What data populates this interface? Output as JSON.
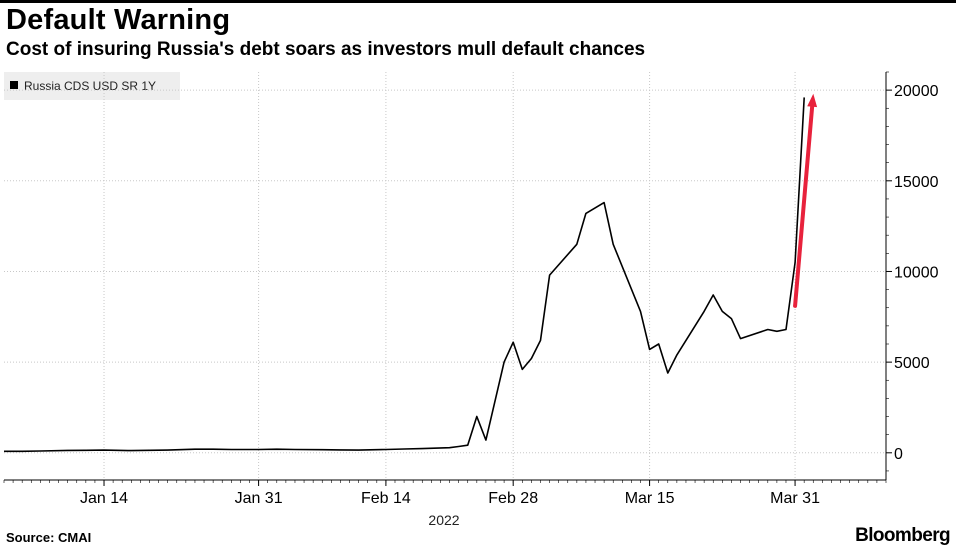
{
  "header": {
    "title": "Default Warning",
    "subtitle": "Cost of insuring Russia's debt soars as investors mull default chances"
  },
  "footer": {
    "source": "Source: CMAI",
    "brand": "Bloomberg"
  },
  "chart_data": {
    "type": "line",
    "title": "Default Warning",
    "subtitle": "Cost of insuring Russia's debt soars as investors mull default chances",
    "xlabel": "2022",
    "ylabel": "",
    "legend_position": "top-left",
    "grid": true,
    "x_tick_labels": [
      {
        "date": "2022-01-14",
        "label": "Jan 14"
      },
      {
        "date": "2022-01-31",
        "label": "Jan 31"
      },
      {
        "date": "2022-02-14",
        "label": "Feb 14"
      },
      {
        "date": "2022-02-28",
        "label": "Feb 28"
      },
      {
        "date": "2022-03-15",
        "label": "Mar 15"
      },
      {
        "date": "2022-03-31",
        "label": "Mar 31"
      }
    ],
    "y_ticks": [
      0,
      5000,
      10000,
      15000,
      20000
    ],
    "y_tick_labels": [
      "0",
      "5000",
      "10000",
      "15000",
      "20000"
    ],
    "xlim": [
      "2022-01-03",
      "2022-04-10"
    ],
    "ylim": [
      -1500,
      21000
    ],
    "series": [
      {
        "name": "Russia CDS USD SR 1Y",
        "color": "#000000",
        "points": [
          [
            "2022-01-03",
            80
          ],
          [
            "2022-01-05",
            80
          ],
          [
            "2022-01-07",
            100
          ],
          [
            "2022-01-10",
            130
          ],
          [
            "2022-01-12",
            140
          ],
          [
            "2022-01-14",
            150
          ],
          [
            "2022-01-17",
            120
          ],
          [
            "2022-01-19",
            140
          ],
          [
            "2022-01-21",
            150
          ],
          [
            "2022-01-24",
            200
          ],
          [
            "2022-01-26",
            200
          ],
          [
            "2022-01-28",
            180
          ],
          [
            "2022-01-31",
            180
          ],
          [
            "2022-02-02",
            200
          ],
          [
            "2022-02-04",
            180
          ],
          [
            "2022-02-07",
            170
          ],
          [
            "2022-02-09",
            160
          ],
          [
            "2022-02-11",
            150
          ],
          [
            "2022-02-14",
            180
          ],
          [
            "2022-02-16",
            210
          ],
          [
            "2022-02-18",
            230
          ],
          [
            "2022-02-21",
            280
          ],
          [
            "2022-02-22",
            350
          ],
          [
            "2022-02-23",
            420
          ],
          [
            "2022-02-24",
            2000
          ],
          [
            "2022-02-25",
            700
          ],
          [
            "2022-02-27",
            5000
          ],
          [
            "2022-02-28",
            6100
          ],
          [
            "2022-03-01",
            4600
          ],
          [
            "2022-03-02",
            5200
          ],
          [
            "2022-03-03",
            6200
          ],
          [
            "2022-03-04",
            9800
          ],
          [
            "2022-03-07",
            11500
          ],
          [
            "2022-03-08",
            13200
          ],
          [
            "2022-03-10",
            13800
          ],
          [
            "2022-03-11",
            11500
          ],
          [
            "2022-03-14",
            7800
          ],
          [
            "2022-03-15",
            5700
          ],
          [
            "2022-03-16",
            6000
          ],
          [
            "2022-03-17",
            4400
          ],
          [
            "2022-03-18",
            5400
          ],
          [
            "2022-03-21",
            7800
          ],
          [
            "2022-03-22",
            8700
          ],
          [
            "2022-03-23",
            7800
          ],
          [
            "2022-03-24",
            7400
          ],
          [
            "2022-03-25",
            6300
          ],
          [
            "2022-03-28",
            6800
          ],
          [
            "2022-03-29",
            6700
          ],
          [
            "2022-03-30",
            6800
          ],
          [
            "2022-03-31",
            10500
          ],
          [
            "2022-04-01",
            19600
          ]
        ]
      }
    ],
    "annotations": [
      {
        "type": "arrow",
        "color": "#e8223c",
        "from": [
          "2022-03-31",
          8100
        ],
        "to": [
          "2022-04-02",
          19800
        ]
      }
    ]
  }
}
